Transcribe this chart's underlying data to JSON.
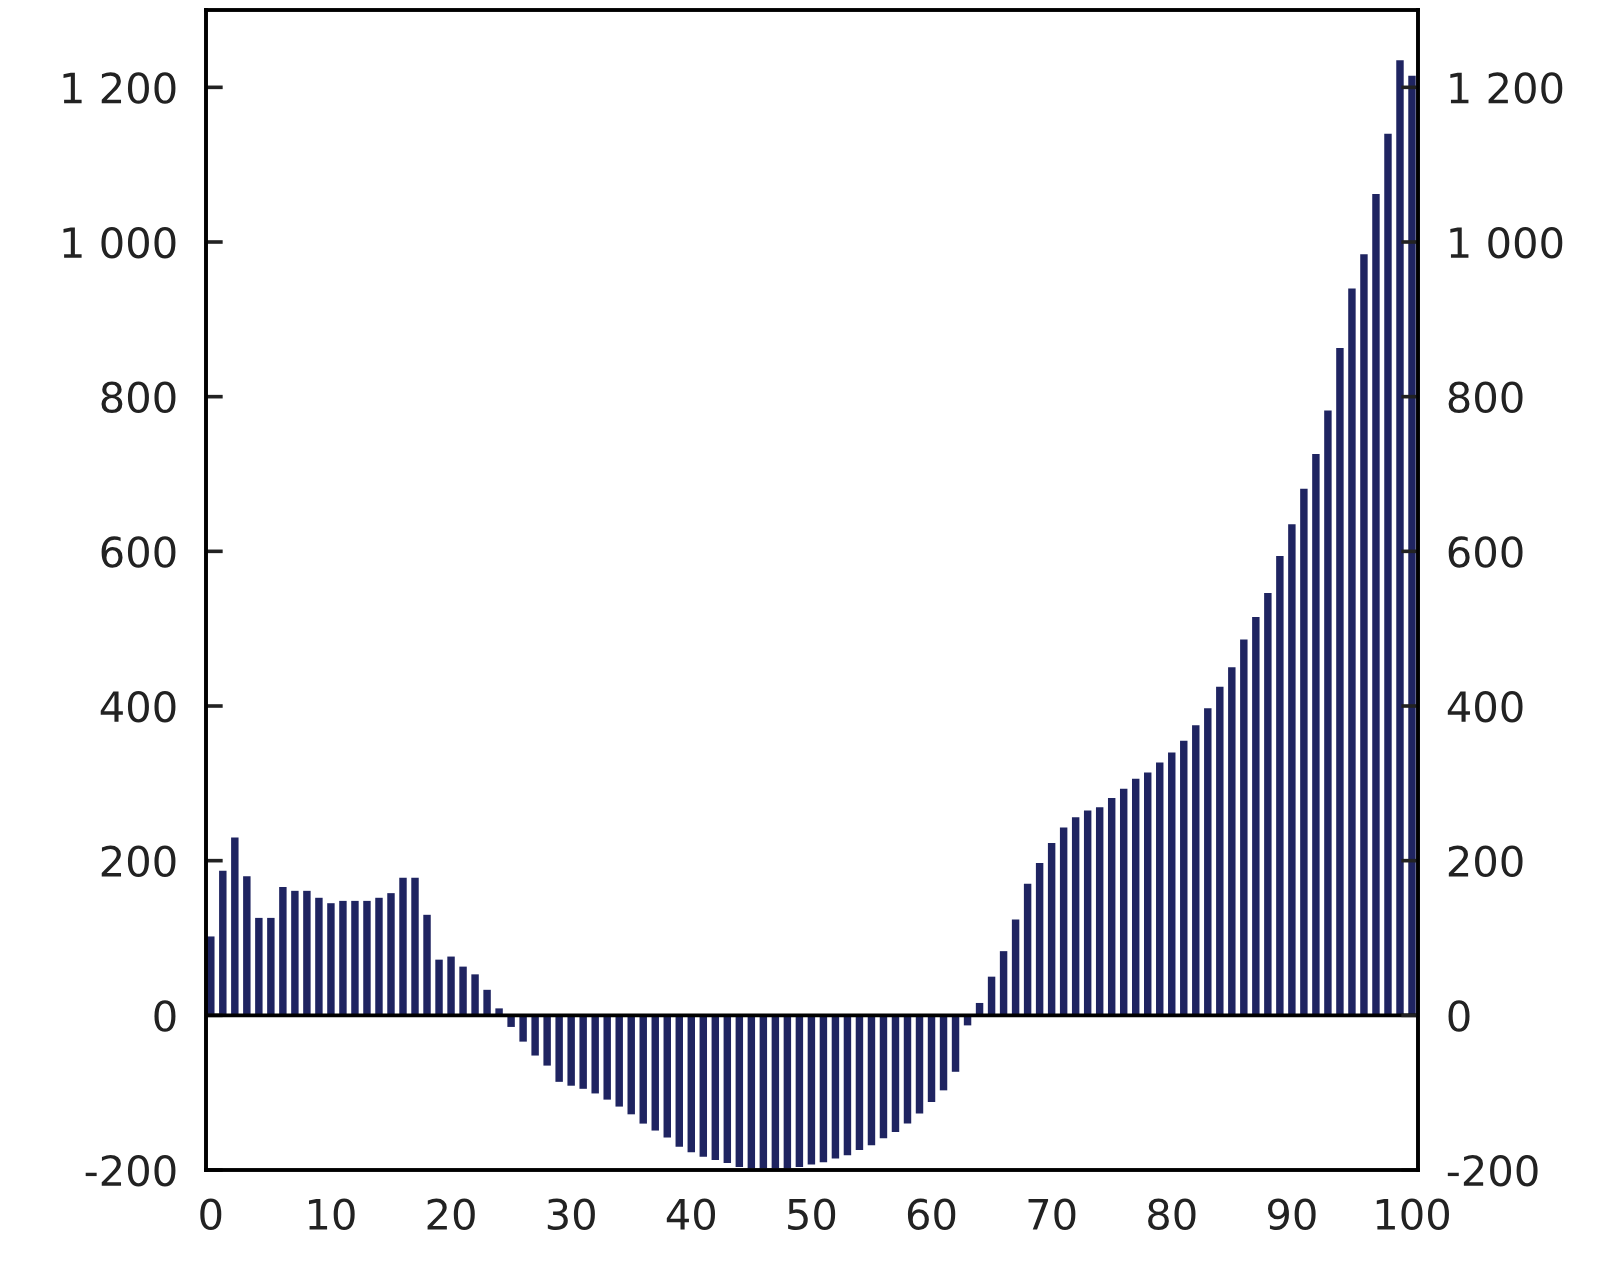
{
  "chart_data": {
    "type": "bar",
    "color": "#1f2461",
    "x": [
      0,
      1,
      2,
      3,
      4,
      5,
      6,
      7,
      8,
      9,
      10,
      11,
      12,
      13,
      14,
      15,
      16,
      17,
      18,
      19,
      20,
      21,
      22,
      23,
      24,
      25,
      26,
      27,
      28,
      29,
      30,
      31,
      32,
      33,
      34,
      35,
      36,
      37,
      38,
      39,
      40,
      41,
      42,
      43,
      44,
      45,
      46,
      47,
      48,
      49,
      50,
      51,
      52,
      53,
      54,
      55,
      56,
      57,
      58,
      59,
      60,
      61,
      62,
      63,
      64,
      65,
      66,
      67,
      68,
      69,
      70,
      71,
      72,
      73,
      74,
      75,
      76,
      77,
      78,
      79,
      80,
      81,
      82,
      83,
      84,
      85,
      86,
      87,
      88,
      89,
      90,
      91,
      92,
      93,
      94,
      95,
      96,
      97,
      98,
      99,
      100
    ],
    "values": [
      102,
      187,
      230,
      180,
      126,
      126,
      166,
      161,
      161,
      152,
      145,
      148,
      148,
      148,
      152,
      158,
      178,
      178,
      130,
      72,
      76,
      63,
      53,
      33,
      9,
      -15,
      -34,
      -52,
      -65,
      -86,
      -91,
      -95,
      -101,
      -109,
      -118,
      -128,
      -140,
      -149,
      -158,
      -170,
      -177,
      -183,
      -187,
      -191,
      -196,
      -198,
      -198,
      -198,
      -198,
      -196,
      -193,
      -190,
      -185,
      -181,
      -174,
      -168,
      -159,
      -151,
      -140,
      -127,
      -112,
      -97,
      -73,
      -13,
      16,
      50,
      83,
      124,
      170,
      197,
      223,
      243,
      256,
      265,
      269,
      281,
      293,
      306,
      314,
      327,
      340,
      355,
      375,
      397,
      425,
      450,
      486,
      515,
      546,
      594,
      635,
      681,
      726,
      782,
      863,
      940,
      984,
      1062,
      1140,
      1235,
      1215
    ],
    "xlim": [
      -0.4,
      100.5
    ],
    "xticks": [
      0,
      10,
      20,
      30,
      40,
      50,
      60,
      70,
      80,
      90,
      100
    ],
    "ylim": [
      -200,
      1300
    ],
    "yticks": [
      -200,
      0,
      200,
      400,
      600,
      800,
      {
        "value": 1000,
        "label": "1 000"
      },
      {
        "value": 1200,
        "label": "1 200"
      }
    ],
    "y2lim": [
      -200,
      1300
    ],
    "y2ticks": [
      -200,
      0,
      200,
      400,
      600,
      800,
      {
        "value": 1000,
        "label": "1 000"
      },
      {
        "value": 1200,
        "label": "1 200"
      }
    ],
    "ref_lines": [
      {
        "axis": "y",
        "value": 0,
        "color": "#000000"
      }
    ],
    "grid": false,
    "legend": false
  }
}
